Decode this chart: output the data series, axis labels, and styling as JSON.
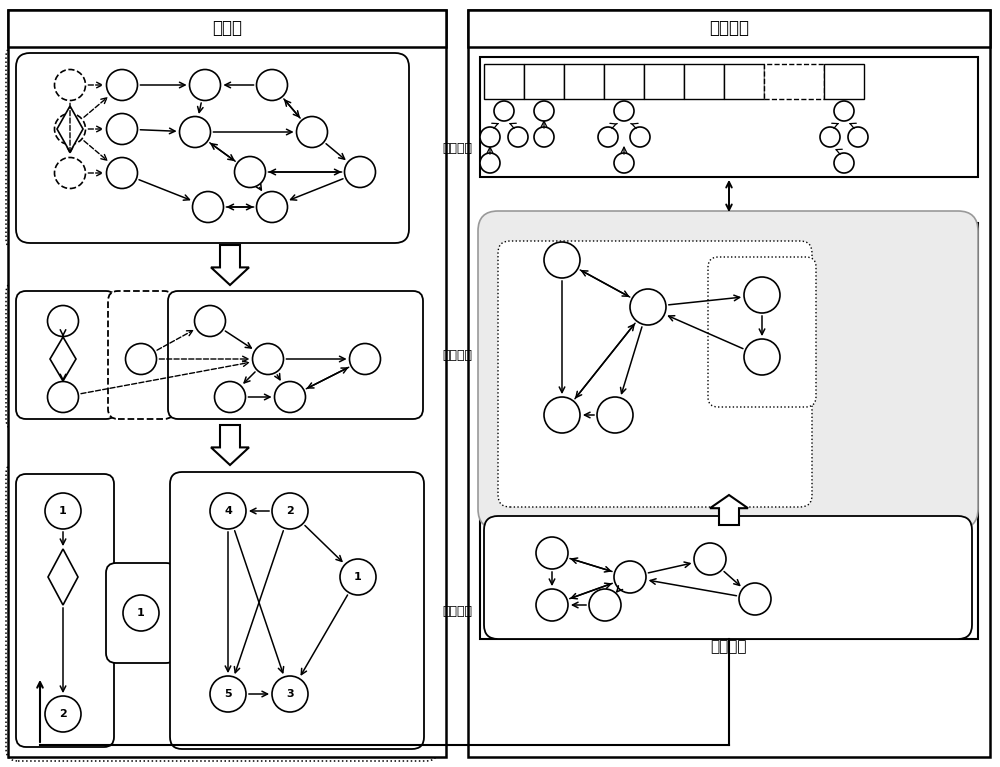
{
  "title_left": "预处理",
  "title_right": "结果判重",
  "label_shrink": "缩图删点",
  "label_partition": "划分子图",
  "label_sort": "顶点排序",
  "label_enum": "分步枚举",
  "bg_color": "#ffffff"
}
